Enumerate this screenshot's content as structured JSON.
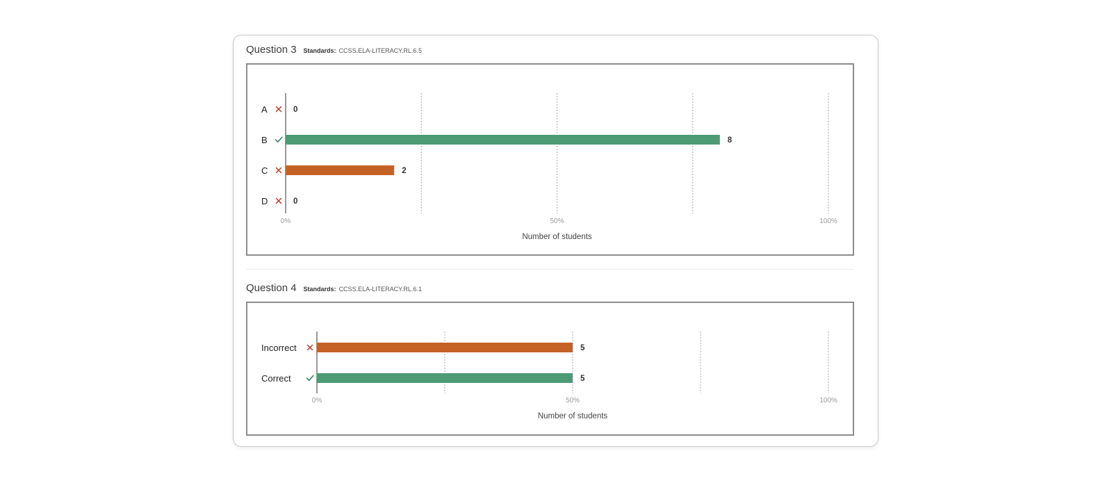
{
  "colors": {
    "correct": "#4c9b75",
    "incorrect": "#c66126",
    "grid": "#a8a8a8",
    "axis": "#777777",
    "check": "#2e7d57",
    "cross": "#c0392b"
  },
  "icons": {
    "correct": "checkmark-icon",
    "incorrect": "x-mark-icon"
  },
  "chart_data": [
    {
      "type": "bar",
      "orientation": "horizontal",
      "title": "Question 3",
      "standards_label": "Standards:",
      "standards": "CCSS.ELA-LITERACY.RL.6.5",
      "categories": [
        "A",
        "B",
        "C",
        "D"
      ],
      "correct": [
        false,
        true,
        false,
        false
      ],
      "values": [
        0,
        8,
        2,
        0
      ],
      "xlim": [
        0,
        10
      ],
      "tick_labels": [
        "0%",
        "50%",
        "100%"
      ],
      "xlabel": "Number of students",
      "grid": true
    },
    {
      "type": "bar",
      "orientation": "horizontal",
      "title": "Question 4",
      "standards_label": "Standards:",
      "standards": "CCSS.ELA-LITERACY.RL.6.1",
      "categories": [
        "Incorrect",
        "Correct"
      ],
      "correct": [
        false,
        true
      ],
      "values": [
        5,
        5
      ],
      "xlim": [
        0,
        10
      ],
      "tick_labels": [
        "0%",
        "50%",
        "100%"
      ],
      "xlabel": "Number of students",
      "grid": true
    }
  ]
}
